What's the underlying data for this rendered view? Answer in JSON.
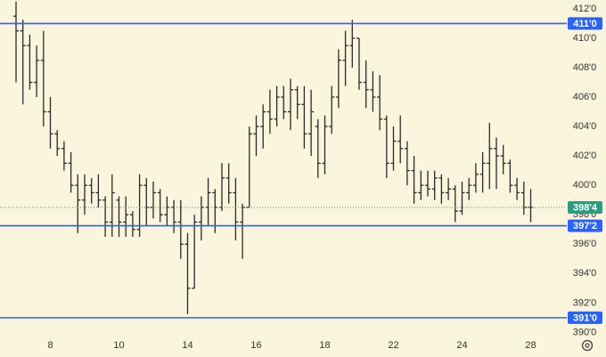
{
  "chart_data": {
    "type": "ohlc",
    "categories": [
      null,
      null,
      null,
      null,
      null,
      "8",
      null,
      null,
      null,
      null,
      null,
      null,
      null,
      null,
      null,
      "10",
      null,
      null,
      null,
      null,
      null,
      null,
      null,
      null,
      null,
      "14",
      null,
      null,
      null,
      null,
      null,
      null,
      null,
      null,
      null,
      "16",
      null,
      null,
      null,
      null,
      null,
      null,
      null,
      null,
      null,
      "18",
      null,
      null,
      null,
      null,
      null,
      null,
      null,
      null,
      null,
      "22",
      null,
      null,
      null,
      null,
      null,
      null,
      null,
      null,
      null,
      "24",
      null,
      null,
      null,
      null,
      null,
      null,
      null,
      null,
      null,
      "28"
    ],
    "open": [
      411.5,
      410.5,
      409.5,
      407,
      408.5,
      405,
      403.5,
      402.5,
      401.5,
      400,
      399,
      400,
      399.5,
      399,
      397.5,
      399,
      397.5,
      398,
      397,
      400,
      398.5,
      399.5,
      398,
      398.5,
      397.5,
      396,
      393,
      397.5,
      398.5,
      399.5,
      398.5,
      400.5,
      399.5,
      397.5,
      398.5,
      403.5,
      404,
      405,
      404.5,
      406,
      405,
      406.5,
      405.5,
      403.5,
      404,
      401.5,
      404,
      406,
      408.5,
      409.5,
      410,
      407,
      406.5,
      406,
      404.5,
      401.5,
      403,
      402.5,
      401,
      399.5,
      400,
      399.75,
      400.5,
      399.5,
      399.75,
      398.25,
      399.5,
      400,
      400.75,
      401.5,
      402.5,
      402,
      401.5,
      400,
      399.5,
      398.5
    ],
    "high": [
      412.5,
      411.25,
      410.25,
      409.5,
      410.5,
      406,
      403.75,
      403,
      402.25,
      400.75,
      400.75,
      400.5,
      400.75,
      399.25,
      400.75,
      399.25,
      399.25,
      398.25,
      400.75,
      400.5,
      400.25,
      399.75,
      399.25,
      399,
      399,
      396.75,
      398,
      399.25,
      400.5,
      399.75,
      401.5,
      401.5,
      400.5,
      398.75,
      404,
      404.75,
      405.5,
      406.5,
      406.75,
      406.75,
      407.25,
      406.75,
      406.75,
      406.5,
      404.5,
      404.75,
      406.75,
      409.25,
      410.5,
      411.25,
      410,
      408.5,
      407.75,
      407.5,
      404.75,
      404,
      404.75,
      403,
      402,
      401,
      401,
      401,
      400.75,
      400.5,
      400,
      400.25,
      400.5,
      401.5,
      402.25,
      404.25,
      403.25,
      402.75,
      401.75,
      400.5,
      400.25,
      399.75
    ],
    "low": [
      407,
      405.5,
      406.5,
      406,
      404,
      402.5,
      402,
      401,
      399.5,
      396.75,
      398,
      398.75,
      398.5,
      396.5,
      396.5,
      396.5,
      396.5,
      396.5,
      396.5,
      397.25,
      397.75,
      397.5,
      397.25,
      396.75,
      395,
      391.25,
      393,
      396.25,
      397.25,
      396.75,
      398.25,
      398.75,
      396.25,
      395,
      398.5,
      402,
      402.5,
      403.5,
      404,
      404.5,
      403.75,
      404.5,
      402.5,
      402,
      400.5,
      400.75,
      403.5,
      405.25,
      406.75,
      408,
      406.5,
      405.25,
      405,
      403.75,
      400.5,
      401,
      401.5,
      400,
      398.75,
      399,
      399.25,
      399,
      398.75,
      399,
      397.5,
      398,
      399,
      399.5,
      399.5,
      399.75,
      399.75,
      400.75,
      399.5,
      399,
      398,
      397.5
    ],
    "close": [
      410.5,
      409.5,
      407,
      408.5,
      405,
      403.5,
      402.5,
      401.5,
      400,
      399,
      400,
      399.5,
      399,
      397.5,
      399.5,
      397.5,
      398,
      397,
      400,
      398.5,
      399.5,
      398,
      398.5,
      397.5,
      396,
      393,
      397.5,
      398.5,
      399.5,
      398.5,
      400.5,
      399.5,
      397.5,
      398.5,
      403.5,
      404,
      405,
      404.5,
      406,
      405,
      406.5,
      405.5,
      403.5,
      405,
      401.5,
      404,
      406,
      408.5,
      409.5,
      410,
      407,
      406.5,
      406,
      404.5,
      401.5,
      403,
      402.5,
      401,
      399.5,
      400,
      399.75,
      400.5,
      399.5,
      399.75,
      398.25,
      399.5,
      400,
      400.75,
      401.5,
      402.5,
      402,
      401.5,
      400,
      399.5,
      398.5,
      398.5
    ],
    "color": "#2a2a2a",
    "ylim": [
      389.6,
      412.6
    ],
    "yticks": [
      {
        "value": 390,
        "label": "390'0"
      },
      {
        "value": 392,
        "label": "392'0"
      },
      {
        "value": 394,
        "label": "394'0"
      },
      {
        "value": 396,
        "label": "396'0"
      },
      {
        "value": 398,
        "label": "398'0"
      },
      {
        "value": 400,
        "label": "400'0"
      },
      {
        "value": 402,
        "label": "402'0"
      },
      {
        "value": 404,
        "label": "404'0"
      },
      {
        "value": 406,
        "label": "406'0"
      },
      {
        "value": 408,
        "label": "408'0"
      },
      {
        "value": 410,
        "label": "410'0"
      },
      {
        "value": 412,
        "label": "412'0"
      }
    ],
    "hlines": [
      {
        "value": 411,
        "label": "411'0",
        "color": "#2962ff"
      },
      {
        "value": 397.25,
        "label": "397'2",
        "color": "#2962ff"
      },
      {
        "value": 391,
        "label": "391'0",
        "color": "#2962ff"
      }
    ],
    "last": {
      "value": 398.5,
      "label": "398'4",
      "color": "#2a9d80"
    }
  }
}
